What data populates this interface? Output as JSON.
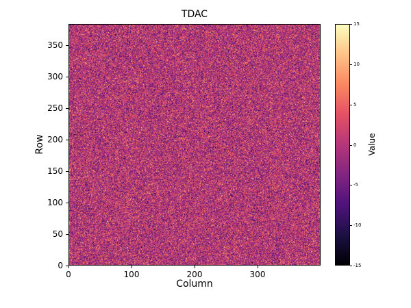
{
  "chart_data": {
    "type": "heatmap",
    "title": "TDAC",
    "xlabel": "Column",
    "ylabel": "Row",
    "x_range": [
      0,
      400
    ],
    "y_range": [
      0,
      384
    ],
    "x_ticks": [
      0,
      100,
      200,
      300
    ],
    "y_ticks": [
      0,
      50,
      100,
      150,
      200,
      250,
      300,
      350
    ],
    "grid": {
      "cols": 400,
      "rows": 384
    },
    "colorbar": {
      "label": "Value",
      "vmin": -15,
      "vmax": 15,
      "ticks": [
        -15,
        -10,
        -5,
        0,
        5,
        10,
        15
      ],
      "colormap": "magma",
      "colormap_stops": [
        "#000004",
        "#1c1044",
        "#4f127b",
        "#812581",
        "#b5367a",
        "#e55064",
        "#fb8761",
        "#fec287",
        "#fcfdbf"
      ]
    },
    "data_description": "per-pixel random noise centered near 0 (approx normal, sigma ~4.5) with sparse bright/dark outliers spanning the full -15..15 range",
    "noise": {
      "mean": 0,
      "std": 4.5,
      "outlier_fraction": 0.01,
      "seed": 42
    },
    "legend": "colorbar on right",
    "grid_lines": false
  }
}
